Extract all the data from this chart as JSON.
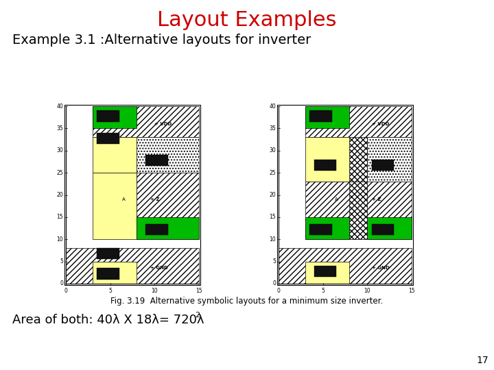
{
  "title": "Layout Examples",
  "title_color": "#cc0000",
  "title_fontsize": 22,
  "subtitle": "Example 3.1 :Alternative layouts for inverter",
  "subtitle_fontsize": 14,
  "fig_caption": "Fig. 3.19  Alternative symbolic layouts for a minimum size inverter.",
  "fig_caption_fontsize": 8.5,
  "area_fontsize": 13,
  "page_number": "17",
  "page_number_fontsize": 10,
  "background_color": "#ffffff",
  "color_green": "#00bb00",
  "color_green_dark": "#009900",
  "color_yellow": "#ffff99",
  "color_black_sq": "#111111",
  "color_hatch_bg": "#ffffff"
}
